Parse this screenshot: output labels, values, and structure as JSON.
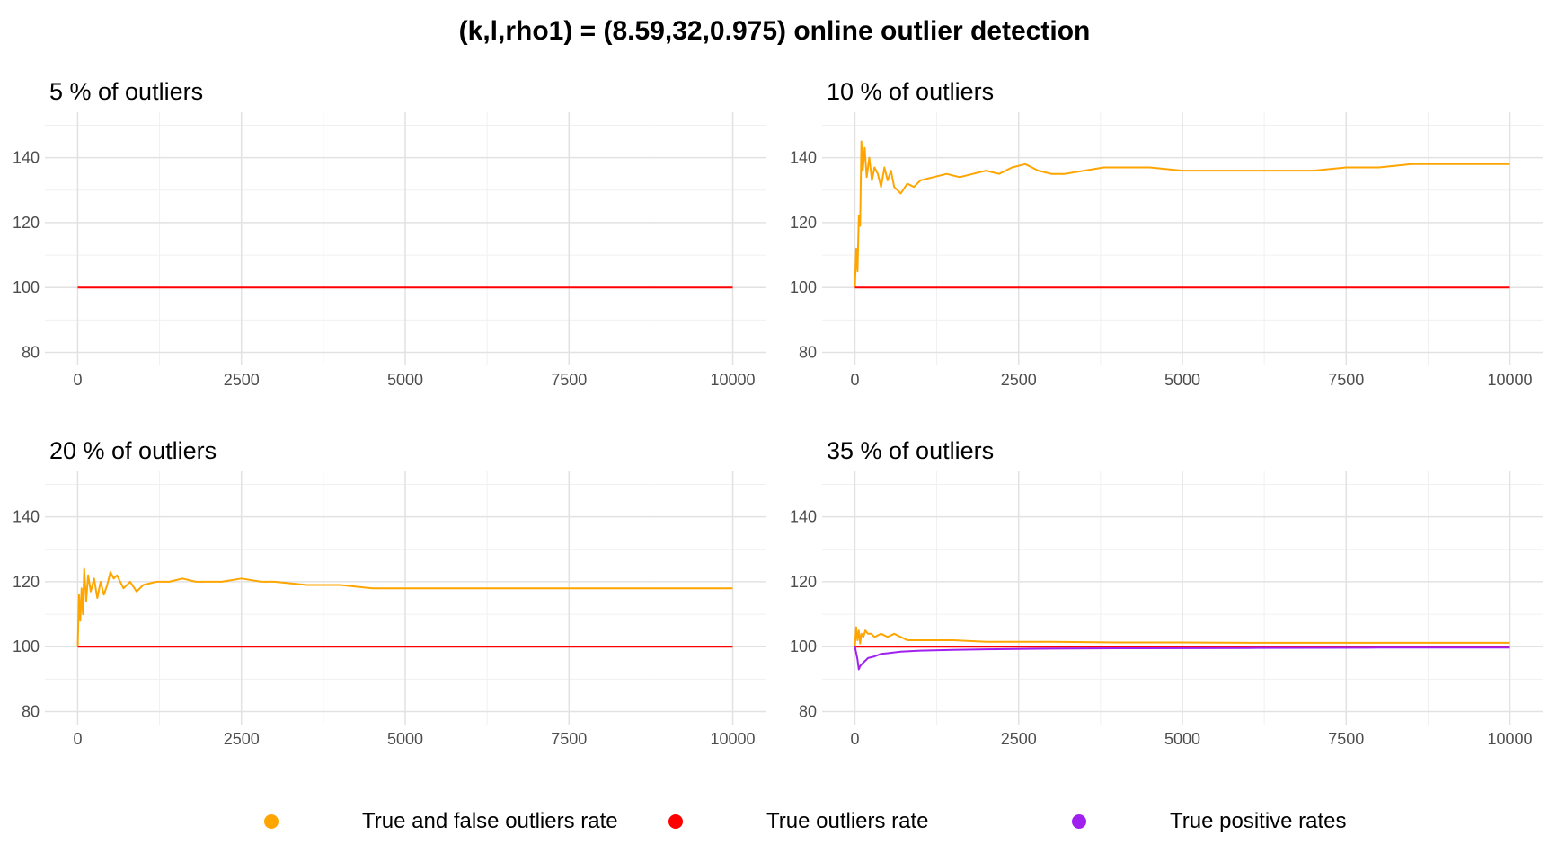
{
  "figure": {
    "title": "(k,l,rho1) = (8.59,32,0.975) online outlier detection"
  },
  "legend": {
    "items": [
      {
        "label": "True and false outliers rate",
        "color": "#FFA500",
        "icon": "circle-dot"
      },
      {
        "label": "True outliers rate",
        "color": "#FF0000",
        "icon": "circle-dot"
      },
      {
        "label": "True positive rates",
        "color": "#A020F0",
        "icon": "circle-dot"
      }
    ]
  },
  "chart_data": [
    {
      "type": "line",
      "title": "5 % of outliers",
      "xlabel": "",
      "ylabel": "",
      "xlim": [
        -500,
        10500
      ],
      "ylim": [
        76,
        154
      ],
      "xticks": [
        0,
        2500,
        5000,
        7500,
        10000
      ],
      "yticks": [
        80,
        100,
        120,
        140
      ],
      "grid": true,
      "series": [
        {
          "color": "#FF0000",
          "x": [
            0,
            10000
          ],
          "y": [
            100,
            100
          ]
        }
      ]
    },
    {
      "type": "line",
      "title": "10 % of outliers",
      "xlabel": "",
      "ylabel": "",
      "xlim": [
        -500,
        10500
      ],
      "ylim": [
        76,
        154
      ],
      "xticks": [
        0,
        2500,
        5000,
        7500,
        10000
      ],
      "yticks": [
        80,
        100,
        120,
        140
      ],
      "grid": true,
      "series": [
        {
          "color": "#FFA500",
          "x": [
            0,
            20,
            40,
            60,
            80,
            100,
            120,
            150,
            180,
            220,
            260,
            300,
            350,
            400,
            450,
            500,
            550,
            600,
            700,
            800,
            900,
            1000,
            1200,
            1400,
            1600,
            1800,
            2000,
            2200,
            2400,
            2600,
            2800,
            3000,
            3200,
            3500,
            3800,
            4000,
            4500,
            5000,
            5500,
            6000,
            6500,
            7000,
            7500,
            8000,
            8500,
            9000,
            9500,
            10000
          ],
          "y": [
            100,
            112,
            105,
            122,
            119,
            145,
            136,
            143,
            134,
            140,
            133,
            137,
            135,
            131,
            137,
            133,
            136,
            131,
            129,
            132,
            131,
            133,
            134,
            135,
            134,
            135,
            136,
            135,
            137,
            138,
            136,
            135,
            135,
            136,
            137,
            137,
            137,
            136,
            136,
            136,
            136,
            136,
            137,
            137,
            138,
            138,
            138,
            138
          ]
        },
        {
          "color": "#FF0000",
          "x": [
            0,
            10000
          ],
          "y": [
            100,
            100
          ]
        }
      ]
    },
    {
      "type": "line",
      "title": "20 % of outliers",
      "xlabel": "",
      "ylabel": "",
      "xlim": [
        -500,
        10500
      ],
      "ylim": [
        76,
        154
      ],
      "xticks": [
        0,
        2500,
        5000,
        7500,
        10000
      ],
      "yticks": [
        80,
        100,
        120,
        140
      ],
      "grid": true,
      "series": [
        {
          "color": "#FFA500",
          "x": [
            0,
            20,
            40,
            60,
            80,
            100,
            130,
            160,
            200,
            250,
            300,
            350,
            400,
            450,
            500,
            550,
            600,
            700,
            800,
            900,
            1000,
            1200,
            1400,
            1600,
            1800,
            2000,
            2200,
            2500,
            2800,
            3000,
            3500,
            4000,
            4500,
            5000,
            5500,
            6000,
            6500,
            7000,
            7500,
            8000,
            8500,
            9000,
            9500,
            10000
          ],
          "y": [
            100,
            116,
            108,
            118,
            110,
            124,
            114,
            122,
            117,
            121,
            115,
            120,
            116,
            119,
            123,
            121,
            122,
            118,
            120,
            117,
            119,
            120,
            120,
            121,
            120,
            120,
            120,
            121,
            120,
            120,
            119,
            119,
            118,
            118,
            118,
            118,
            118,
            118,
            118,
            118,
            118,
            118,
            118,
            118
          ]
        },
        {
          "color": "#FF0000",
          "x": [
            0,
            10000
          ],
          "y": [
            100,
            100
          ]
        }
      ]
    },
    {
      "type": "line",
      "title": "35 % of outliers",
      "xlabel": "",
      "ylabel": "",
      "xlim": [
        -500,
        10500
      ],
      "ylim": [
        76,
        154
      ],
      "xticks": [
        0,
        2500,
        5000,
        7500,
        10000
      ],
      "yticks": [
        80,
        100,
        120,
        140
      ],
      "grid": true,
      "series": [
        {
          "color": "#FFA500",
          "x": [
            0,
            20,
            40,
            60,
            80,
            100,
            130,
            160,
            200,
            250,
            300,
            400,
            500,
            600,
            700,
            800,
            1000,
            1500,
            2000,
            2500,
            3000,
            4000,
            5000,
            6000,
            7000,
            8000,
            9000,
            10000
          ],
          "y": [
            100,
            106,
            102,
            105,
            101,
            104,
            103,
            105,
            104,
            104,
            103,
            104,
            103,
            104,
            103,
            102,
            102,
            102,
            101.5,
            101.5,
            101.5,
            101.3,
            101.3,
            101.2,
            101.2,
            101.2,
            101.2,
            101.2
          ]
        },
        {
          "color": "#FF0000",
          "x": [
            0,
            10000
          ],
          "y": [
            100,
            100
          ]
        },
        {
          "color": "#A020F0",
          "x": [
            0,
            40,
            60,
            80,
            100,
            150,
            200,
            300,
            400,
            500,
            700,
            1000,
            1500,
            2000,
            3000,
            4000,
            6000,
            8000,
            10000
          ],
          "y": [
            100,
            96,
            93,
            94,
            94.5,
            95.5,
            96.5,
            97,
            97.8,
            98,
            98.5,
            98.8,
            99,
            99.2,
            99.4,
            99.5,
            99.6,
            99.7,
            99.7
          ]
        }
      ]
    }
  ]
}
